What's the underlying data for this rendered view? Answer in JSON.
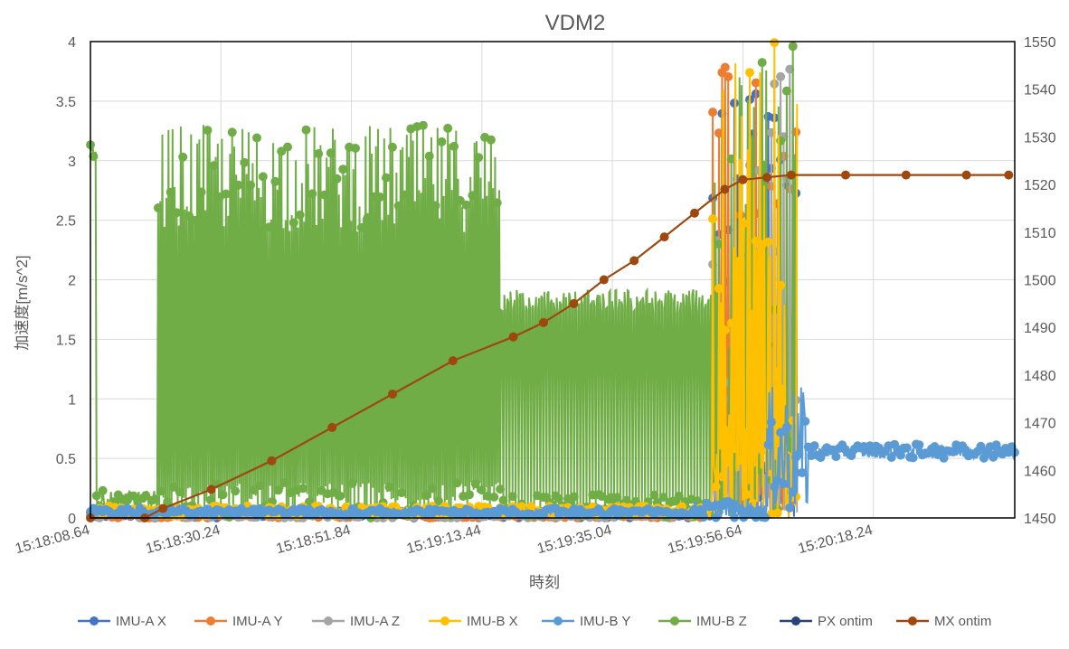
{
  "chart_data": {
    "type": "line",
    "title": "VDM2",
    "xlabel": "時刻",
    "ylabel": "加速度[m/s^2]",
    "ylim": [
      0,
      4
    ],
    "y2lim": [
      1450,
      1550
    ],
    "y_ticks": [
      "0",
      "0.5",
      "1",
      "1.5",
      "2",
      "2.5",
      "3",
      "3.5",
      "4"
    ],
    "y2_ticks": [
      "1450",
      "1460",
      "1470",
      "1480",
      "1490",
      "1500",
      "1510",
      "1520",
      "1530",
      "1540",
      "1550"
    ],
    "x_range_seconds": [
      0,
      153
    ],
    "x_ticks": [
      {
        "label": "15:18:08.64",
        "t": 0
      },
      {
        "label": "15:18:30.24",
        "t": 21.6
      },
      {
        "label": "15:18:51.84",
        "t": 43.2
      },
      {
        "label": "15:19:13.44",
        "t": 64.8
      },
      {
        "label": "15:19:35.04",
        "t": 86.4
      },
      {
        "label": "15:19:56.64",
        "t": 108.0
      },
      {
        "label": "15:20:18.24",
        "t": 129.6
      }
    ],
    "grid": true,
    "legend_position": "bottom",
    "series": [
      {
        "name": "IMU-A X",
        "color": "#4472C4",
        "axis": "left"
      },
      {
        "name": "IMU-A Y",
        "color": "#ED7D31",
        "axis": "left"
      },
      {
        "name": "IMU-A Z",
        "color": "#A5A5A5",
        "axis": "left"
      },
      {
        "name": "IMU-B X",
        "color": "#FFC000",
        "axis": "left"
      },
      {
        "name": "IMU-B Y",
        "color": "#5B9BD5",
        "axis": "left"
      },
      {
        "name": "IMU-B Z",
        "color": "#70AD47",
        "axis": "left"
      },
      {
        "name": "PX ontim",
        "color": "#264478",
        "axis": "right"
      },
      {
        "name": "MX ontim",
        "color": "#9E480E",
        "axis": "right",
        "points": [
          [
            0,
            1450
          ],
          [
            9,
            1450
          ],
          [
            12,
            1452
          ],
          [
            20,
            1456
          ],
          [
            30,
            1462
          ],
          [
            40,
            1469
          ],
          [
            50,
            1476
          ],
          [
            60,
            1483
          ],
          [
            70,
            1488
          ],
          [
            75,
            1491
          ],
          [
            80,
            1495
          ],
          [
            85,
            1500
          ],
          [
            90,
            1504
          ],
          [
            95,
            1509
          ],
          [
            100,
            1514
          ],
          [
            105,
            1519
          ],
          [
            108,
            1521
          ],
          [
            112,
            1521.5
          ],
          [
            116,
            1522
          ],
          [
            125,
            1522
          ],
          [
            135,
            1522
          ],
          [
            145,
            1522
          ],
          [
            152,
            1522
          ]
        ]
      }
    ]
  }
}
